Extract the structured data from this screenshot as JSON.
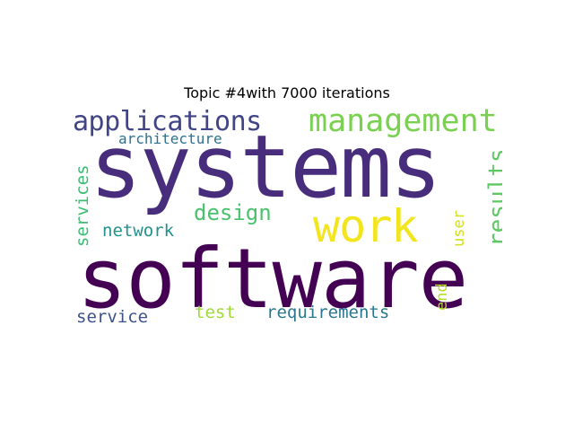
{
  "title": "Topic #4with 7000 iterations",
  "words": [
    {
      "id": "systems",
      "text": "systems",
      "color": "#472d7b"
    },
    {
      "id": "software",
      "text": "software",
      "color": "#440154"
    },
    {
      "id": "management",
      "text": "management",
      "color": "#7ad151"
    },
    {
      "id": "applications",
      "text": "applications",
      "color": "#414487"
    },
    {
      "id": "work",
      "text": "work",
      "color": "#f2e51d"
    },
    {
      "id": "results",
      "text": "results",
      "color": "#5ec962"
    },
    {
      "id": "design",
      "text": "design",
      "color": "#4ac16d"
    },
    {
      "id": "architecture",
      "text": "architecture",
      "color": "#2c728e"
    },
    {
      "id": "services",
      "text": "services",
      "color": "#3ebc74"
    },
    {
      "id": "network",
      "text": "network",
      "color": "#21918c"
    },
    {
      "id": "user",
      "text": "user",
      "color": "#d2e21b"
    },
    {
      "id": "end",
      "text": "end",
      "color": "#b5de2b"
    },
    {
      "id": "service",
      "text": "service",
      "color": "#3b528b"
    },
    {
      "id": "test",
      "text": "test",
      "color": "#a0da39"
    },
    {
      "id": "requirements",
      "text": "requirements",
      "color": "#2a788e"
    }
  ]
}
